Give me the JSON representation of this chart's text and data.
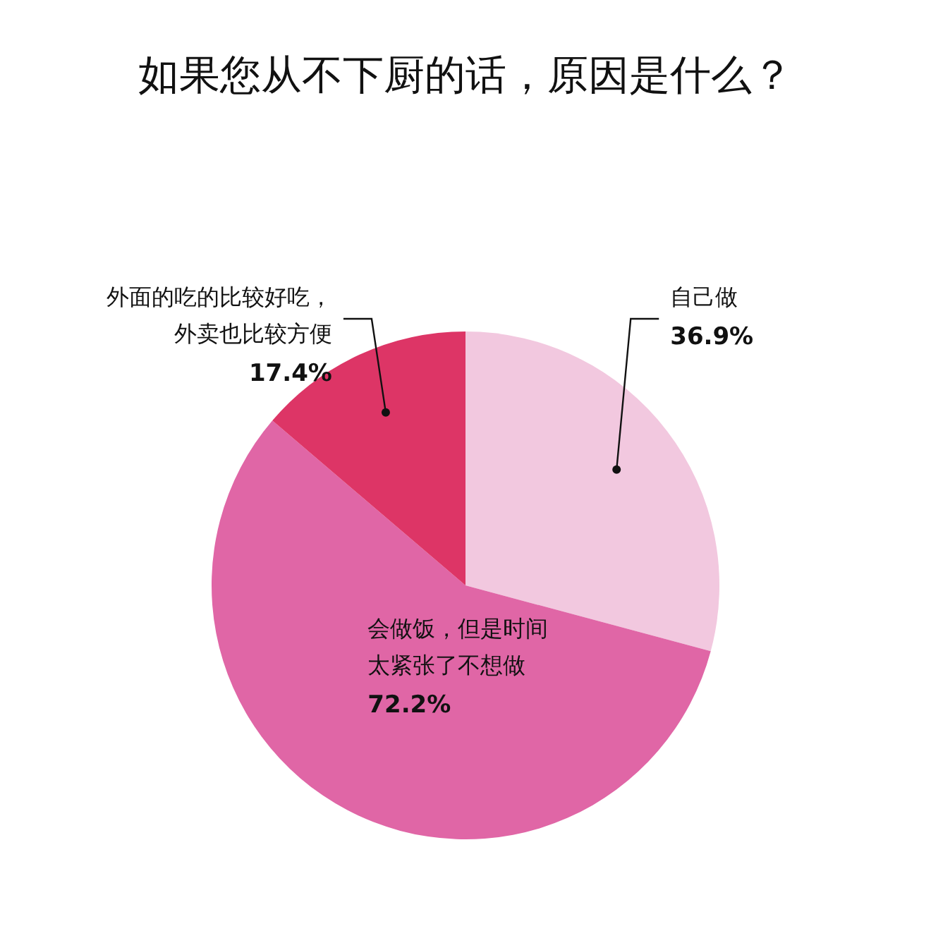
{
  "chart_data": {
    "type": "pie",
    "title": "如果您从不下厨的话，原因是什么？",
    "categories": [
      "自己做",
      "会做饭，但是时间太紧张了不想做",
      "外面的吃的比较好吃，外卖也比较方便"
    ],
    "values": [
      36.9,
      72.2,
      17.4
    ],
    "colors": [
      "#f2c8df",
      "#e066a6",
      "#dd3566"
    ],
    "value_labels": [
      "36.9%",
      "72.2%",
      "17.4%"
    ],
    "legend": false
  }
}
